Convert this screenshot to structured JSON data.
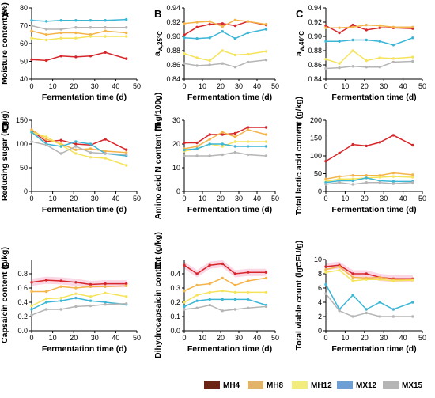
{
  "colors": {
    "MH4": "#d7262b",
    "MH8": "#f4b44a",
    "MH12": "#f5e45b",
    "MX12": "#3bb6d6",
    "MX15": "#b5b5b5"
  },
  "legend": {
    "entries": [
      {
        "label": "MH4",
        "color": "#6b2414"
      },
      {
        "label": "MH8",
        "color": "#e2b46a"
      },
      {
        "label": "MH12",
        "color": "#f2ed7b"
      },
      {
        "label": "MX12",
        "color": "#6d9fd4"
      },
      {
        "label": "MX15",
        "color": "#b5b5b5"
      }
    ]
  },
  "chart_data": [
    {
      "panel": "A",
      "type": "line",
      "xlabel": "Fermentation time (d)",
      "ylabel": "Moisture content (%)",
      "xlim": [
        0,
        50
      ],
      "xticks": [
        0,
        10,
        20,
        30,
        40,
        50
      ],
      "ylim": [
        40,
        80
      ],
      "yticks": [
        40,
        50,
        60,
        70,
        80
      ],
      "x": [
        0,
        7,
        14,
        21,
        28,
        35,
        45
      ],
      "series": [
        {
          "name": "MH4",
          "values": [
            51,
            50.5,
            53,
            52.5,
            53,
            55,
            51.5
          ]
        },
        {
          "name": "MH8",
          "values": [
            67,
            65,
            66,
            66,
            65,
            67,
            66
          ]
        },
        {
          "name": "MH12",
          "values": [
            63,
            62,
            63,
            63,
            64,
            64,
            64
          ]
        },
        {
          "name": "MX12",
          "values": [
            73,
            72.5,
            73,
            73,
            73,
            73,
            73.5
          ]
        },
        {
          "name": "MX15",
          "values": [
            70,
            68,
            68,
            69,
            69,
            69,
            69
          ]
        }
      ]
    },
    {
      "panel": "B",
      "type": "line",
      "xlabel": "Fermentation time (d)",
      "ylabel": "aw,25°C",
      "xlim": [
        0,
        50
      ],
      "xticks": [
        0,
        10,
        20,
        30,
        40,
        50
      ],
      "ylim": [
        0.84,
        0.94
      ],
      "yticks": [
        0.84,
        0.86,
        0.88,
        0.9,
        0.92,
        0.94
      ],
      "x": [
        0,
        7,
        14,
        21,
        28,
        35,
        45
      ],
      "series": [
        {
          "name": "MH4",
          "values": [
            0.902,
            0.913,
            0.917,
            0.918,
            0.915,
            0.921,
            0.916
          ]
        },
        {
          "name": "MH8",
          "values": [
            0.918,
            0.92,
            0.921,
            0.914,
            0.923,
            0.921,
            0.917
          ]
        },
        {
          "name": "MH12",
          "values": [
            0.876,
            0.87,
            0.866,
            0.88,
            0.874,
            0.875,
            0.879
          ]
        },
        {
          "name": "MX12",
          "values": [
            0.898,
            0.897,
            0.898,
            0.907,
            0.897,
            0.905,
            0.91
          ]
        },
        {
          "name": "MX15",
          "values": [
            0.862,
            0.859,
            0.86,
            0.862,
            0.857,
            0.864,
            0.867
          ]
        }
      ]
    },
    {
      "panel": "C",
      "type": "line",
      "xlabel": "Fermentation time (d)",
      "ylabel": "aw,40°C",
      "xlim": [
        0,
        50
      ],
      "xticks": [
        0,
        10,
        20,
        30,
        40,
        50
      ],
      "ylim": [
        0.84,
        0.94
      ],
      "yticks": [
        0.84,
        0.86,
        0.88,
        0.9,
        0.92,
        0.94
      ],
      "x": [
        0,
        7,
        14,
        21,
        28,
        35,
        45
      ],
      "series": [
        {
          "name": "MH4",
          "values": [
            0.915,
            0.905,
            0.916,
            0.909,
            0.912,
            0.912,
            0.911
          ]
        },
        {
          "name": "MH8",
          "values": [
            0.912,
            0.912,
            0.913,
            0.916,
            0.915,
            0.913,
            0.913
          ]
        },
        {
          "name": "MH12",
          "values": [
            0.868,
            0.862,
            0.88,
            0.866,
            0.87,
            0.869,
            0.871
          ]
        },
        {
          "name": "MX12",
          "values": [
            0.893,
            0.893,
            0.895,
            0.895,
            0.893,
            0.888,
            0.898
          ]
        },
        {
          "name": "MX15",
          "values": [
            0.855,
            0.856,
            0.858,
            0.857,
            0.857,
            0.864,
            0.865
          ]
        }
      ]
    },
    {
      "panel": "D",
      "type": "line",
      "xlabel": "Fermentation time (d)",
      "ylabel": "Reducing sugar (mg/g)",
      "xlim": [
        0,
        50
      ],
      "xticks": [
        0,
        10,
        20,
        30,
        40,
        50
      ],
      "ylim": [
        0,
        150
      ],
      "yticks": [
        0,
        50,
        100,
        150
      ],
      "x": [
        0,
        7,
        14,
        21,
        28,
        35,
        45
      ],
      "series": [
        {
          "name": "MH4",
          "values": [
            128,
            105,
            108,
            100,
            98,
            110,
            88
          ]
        },
        {
          "name": "MH8",
          "values": [
            130,
            110,
            100,
            88,
            90,
            85,
            82
          ]
        },
        {
          "name": "MH12",
          "values": [
            125,
            115,
            98,
            80,
            72,
            70,
            55
          ]
        },
        {
          "name": "MX12",
          "values": [
            125,
            100,
            95,
            105,
            100,
            80,
            75
          ]
        },
        {
          "name": "MX15",
          "values": [
            105,
            98,
            80,
            95,
            82,
            80,
            78
          ]
        }
      ]
    },
    {
      "panel": "E",
      "type": "line",
      "xlabel": "Fermentation time (d)",
      "ylabel": "Amino acid N content (mg/100g)",
      "xlim": [
        0,
        50
      ],
      "xticks": [
        0,
        10,
        20,
        30,
        40,
        50
      ],
      "ylim": [
        0,
        30
      ],
      "yticks": [
        0,
        10,
        20,
        30
      ],
      "x": [
        0,
        7,
        14,
        21,
        28,
        35,
        45
      ],
      "series": [
        {
          "name": "MH4",
          "values": [
            20.5,
            20.5,
            24,
            24,
            24.5,
            27,
            27
          ]
        },
        {
          "name": "MH8",
          "values": [
            18,
            19,
            22,
            25,
            23,
            26,
            24
          ]
        },
        {
          "name": "MH12",
          "values": [
            17,
            18,
            20,
            19,
            21,
            21,
            21
          ]
        },
        {
          "name": "MX12",
          "values": [
            17.5,
            18,
            20,
            20,
            19,
            19,
            19
          ]
        },
        {
          "name": "MX15",
          "values": [
            15,
            15,
            15,
            15.5,
            16.5,
            15.5,
            15
          ]
        }
      ]
    },
    {
      "panel": "F",
      "type": "line",
      "xlabel": "Fermentation time (d)",
      "ylabel": "Total lactic acid content (g/kg)",
      "xlim": [
        0,
        50
      ],
      "xticks": [
        0,
        10,
        20,
        30,
        40,
        50
      ],
      "ylim": [
        0,
        200
      ],
      "yticks": [
        0,
        50,
        100,
        150,
        200
      ],
      "x": [
        0,
        7,
        14,
        21,
        28,
        35,
        45
      ],
      "series": [
        {
          "name": "MH4",
          "values": [
            85,
            108,
            132,
            128,
            138,
            158,
            130
          ]
        },
        {
          "name": "MH8",
          "values": [
            35,
            42,
            45,
            45,
            45,
            52,
            47
          ]
        },
        {
          "name": "MH12",
          "values": [
            28,
            35,
            35,
            38,
            40,
            42,
            40
          ]
        },
        {
          "name": "MX12",
          "values": [
            25,
            30,
            30,
            38,
            30,
            28,
            28
          ]
        },
        {
          "name": "MX15",
          "values": [
            20,
            25,
            20,
            25,
            25,
            22,
            25
          ]
        }
      ]
    },
    {
      "panel": "G",
      "type": "line",
      "xlabel": "Fermentation time (d)",
      "ylabel": "Capsaicin content (g/kg)",
      "xlim": [
        0,
        50
      ],
      "xticks": [
        0,
        10,
        20,
        30,
        40,
        50
      ],
      "ylim": [
        0.0,
        1.0
      ],
      "yticks": [
        0.0,
        0.2,
        0.4,
        0.6,
        0.8
      ],
      "x": [
        0,
        7,
        14,
        21,
        28,
        35,
        45
      ],
      "series": [
        {
          "name": "MH4",
          "values": [
            0.68,
            0.71,
            0.7,
            0.68,
            0.65,
            0.66,
            0.66
          ]
        },
        {
          "name": "MH8",
          "values": [
            0.55,
            0.55,
            0.62,
            0.6,
            0.62,
            0.62,
            0.63
          ]
        },
        {
          "name": "MH12",
          "values": [
            0.35,
            0.45,
            0.46,
            0.52,
            0.48,
            0.53,
            0.48
          ]
        },
        {
          "name": "MX12",
          "values": [
            0.3,
            0.4,
            0.42,
            0.46,
            0.42,
            0.4,
            0.37
          ]
        },
        {
          "name": "MX15",
          "values": [
            0.22,
            0.3,
            0.3,
            0.34,
            0.35,
            0.37,
            0.38
          ]
        }
      ]
    },
    {
      "panel": "H",
      "type": "line",
      "xlabel": "Fermentation time (d)",
      "ylabel": "Dihydrocapsaicin content (g/kg)",
      "xlim": [
        0,
        50
      ],
      "xticks": [
        0,
        10,
        20,
        30,
        40,
        50
      ],
      "ylim": [
        0.0,
        0.5
      ],
      "yticks": [
        0.0,
        0.1,
        0.2,
        0.3,
        0.4
      ],
      "x": [
        0,
        7,
        14,
        21,
        28,
        35,
        45
      ],
      "series": [
        {
          "name": "MH4",
          "values": [
            0.46,
            0.4,
            0.46,
            0.47,
            0.4,
            0.41,
            0.41
          ]
        },
        {
          "name": "MH8",
          "values": [
            0.28,
            0.32,
            0.33,
            0.37,
            0.32,
            0.35,
            0.37
          ]
        },
        {
          "name": "MH12",
          "values": [
            0.2,
            0.25,
            0.27,
            0.28,
            0.27,
            0.27,
            0.27
          ]
        },
        {
          "name": "MX12",
          "values": [
            0.17,
            0.21,
            0.22,
            0.22,
            0.22,
            0.22,
            0.18
          ]
        },
        {
          "name": "MX15",
          "values": [
            0.15,
            0.16,
            0.18,
            0.14,
            0.15,
            0.16,
            0.17
          ]
        }
      ]
    },
    {
      "panel": "I",
      "type": "line",
      "xlabel": "Fermentation time (d)",
      "ylabel": "Total viable count (lgCFU/g)",
      "xlim": [
        0,
        50
      ],
      "xticks": [
        0,
        10,
        20,
        30,
        40,
        50
      ],
      "ylim": [
        0,
        10
      ],
      "yticks": [
        0,
        2,
        4,
        6,
        8,
        10
      ],
      "x": [
        0,
        7,
        14,
        21,
        28,
        35,
        45
      ],
      "series": [
        {
          "name": "MH4",
          "values": [
            9.0,
            9.2,
            8.0,
            8.0,
            7.5,
            7.3,
            7.3
          ]
        },
        {
          "name": "MH8",
          "values": [
            8.6,
            9.0,
            7.5,
            7.4,
            7.5,
            7.2,
            7.2
          ]
        },
        {
          "name": "MH12",
          "values": [
            8.2,
            8.5,
            7.0,
            7.2,
            7.2,
            7.0,
            7.1
          ]
        },
        {
          "name": "MX12",
          "values": [
            6.5,
            3.0,
            5.0,
            3.0,
            4.0,
            3.0,
            4.0
          ]
        },
        {
          "name": "MX15",
          "values": [
            5.2,
            2.8,
            2.0,
            2.5,
            2.0,
            2.0,
            2.0
          ]
        }
      ]
    }
  ]
}
